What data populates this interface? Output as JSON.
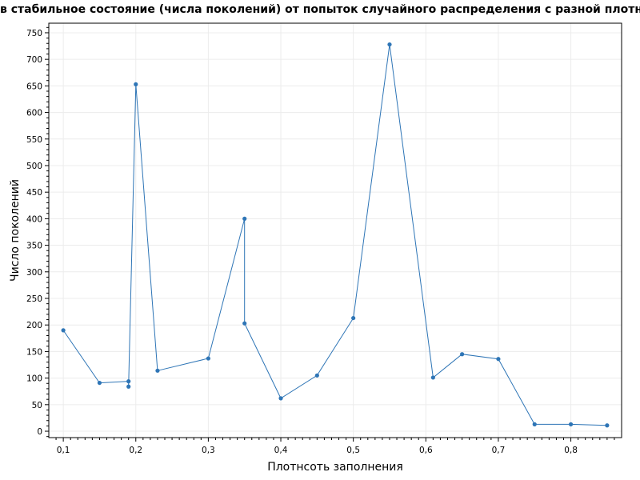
{
  "chart_data": {
    "type": "line",
    "title": "в стабильное состояние (числа поколений) от попыток случайного распределения с разной плотно",
    "xlabel": "Плотнсоть заполнения",
    "ylabel": "Число поколений",
    "xlim": [
      0.08,
      0.87
    ],
    "ylim": [
      -12,
      768
    ],
    "x_ticks": [
      0.1,
      0.2,
      0.3,
      0.4,
      0.5,
      0.6,
      0.7,
      0.8
    ],
    "x_tick_labels": [
      "0,1",
      "0,2",
      "0,3",
      "0,4",
      "0,5",
      "0,6",
      "0,7",
      "0,8"
    ],
    "y_ticks": [
      0,
      50,
      100,
      150,
      200,
      250,
      300,
      350,
      400,
      450,
      500,
      550,
      600,
      650,
      700,
      750
    ],
    "y_tick_labels": [
      "0",
      "50",
      "100",
      "150",
      "200",
      "250",
      "300",
      "350",
      "400",
      "450",
      "500",
      "550",
      "600",
      "650",
      "700",
      "750"
    ],
    "grid": true,
    "color": "#2e75b6",
    "x": [
      0.1,
      0.15,
      0.19,
      0.19,
      0.2,
      0.23,
      0.3,
      0.35,
      0.35,
      0.4,
      0.45,
      0.5,
      0.55,
      0.61,
      0.65,
      0.7,
      0.75,
      0.8,
      0.85
    ],
    "y": [
      190,
      91,
      94,
      84,
      653,
      114,
      137,
      400,
      203,
      62,
      105,
      213,
      728,
      101,
      145,
      136,
      13,
      13,
      11
    ]
  }
}
